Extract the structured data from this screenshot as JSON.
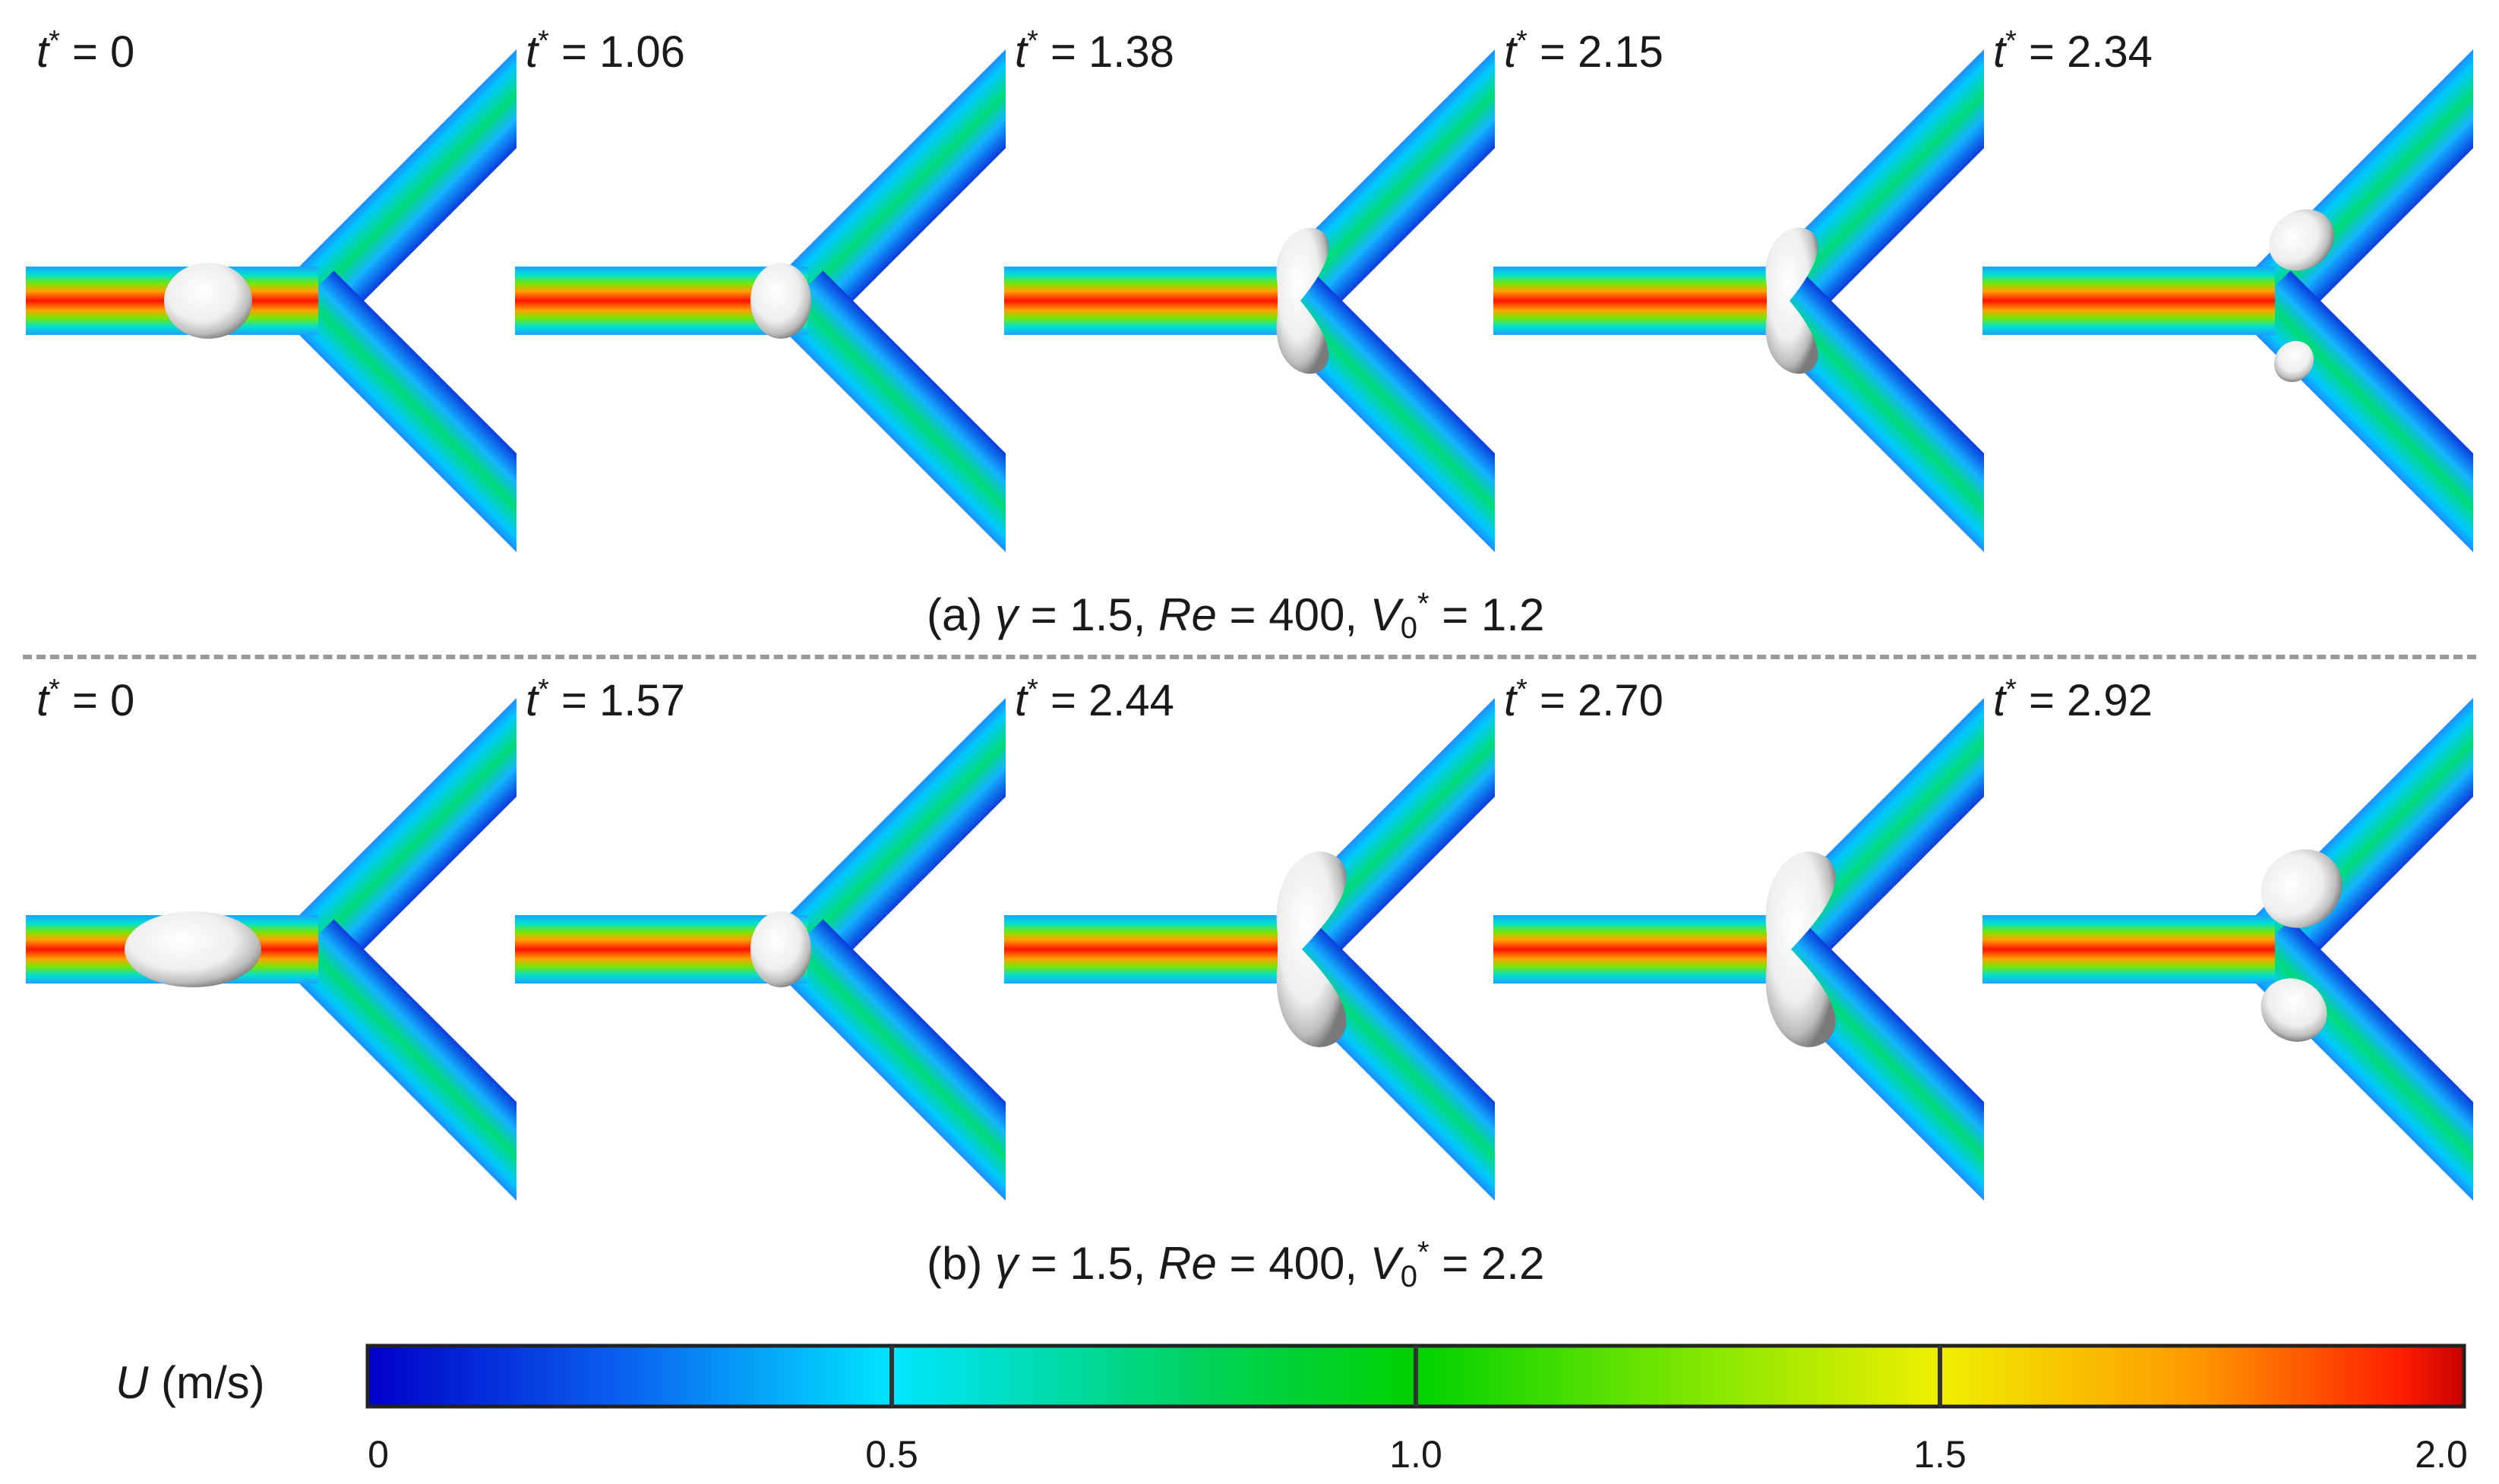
{
  "rows": [
    {
      "caption": {
        "prefix": "(a) ",
        "gamma_sym": "γ",
        "gamma_val": " = 1.5, ",
        "re_sym": "Re",
        "re_val": " = 400, ",
        "v_sym": "V",
        "v_sub": "0",
        "v_sup": "*",
        "v_val": " = 1.2"
      },
      "panels": [
        {
          "t_sym": "t",
          "t_sup": "*",
          "t_val": " = 0",
          "droplet": "single"
        },
        {
          "t_sym": "t",
          "t_sup": "*",
          "t_val": " = 1.06",
          "droplet": "single"
        },
        {
          "t_sym": "t",
          "t_sup": "*",
          "t_val": " = 1.38",
          "droplet": "necking"
        },
        {
          "t_sym": "t",
          "t_sup": "*",
          "t_val": " = 2.15",
          "droplet": "necking"
        },
        {
          "t_sym": "t",
          "t_sup": "*",
          "t_val": " = 2.34",
          "droplet": "split"
        }
      ]
    },
    {
      "caption": {
        "prefix": "(b) ",
        "gamma_sym": "γ",
        "gamma_val": " = 1.5, ",
        "re_sym": "Re",
        "re_val": " = 400, ",
        "v_sym": "V",
        "v_sub": "0",
        "v_sup": "*",
        "v_val": " = 2.2"
      },
      "panels": [
        {
          "t_sym": "t",
          "t_sup": "*",
          "t_val": " = 0",
          "droplet": "single"
        },
        {
          "t_sym": "t",
          "t_sup": "*",
          "t_val": " = 1.57",
          "droplet": "single"
        },
        {
          "t_sym": "t",
          "t_sup": "*",
          "t_val": " = 2.44",
          "droplet": "necking"
        },
        {
          "t_sym": "t",
          "t_sup": "*",
          "t_val": " = 2.70",
          "droplet": "necking"
        },
        {
          "t_sym": "t",
          "t_sup": "*",
          "t_val": " = 2.92",
          "droplet": "split"
        }
      ]
    }
  ],
  "colorbar": {
    "symbol": "U",
    "unit": " (m/s)",
    "range": [
      0,
      2.0
    ],
    "ticks": [
      "0",
      "0.5",
      "1.0",
      "1.5",
      "2.0"
    ],
    "colors": [
      "#0000c8",
      "#0a64f0",
      "#00e6ff",
      "#00d25a",
      "#78e600",
      "#f0f000",
      "#ff9600",
      "#ff1e00",
      "#c80000"
    ]
  }
}
